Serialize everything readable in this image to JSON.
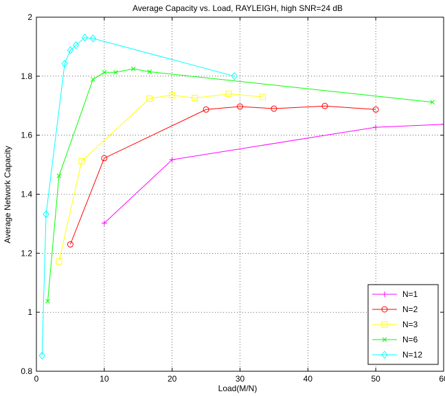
{
  "chart_data": {
    "type": "line",
    "title": "Average Capacity vs. Load, RAYLEIGH, high SNR=24 dB",
    "xlabel": "Load(M/N)",
    "ylabel": "Average Network Capacity",
    "xlim": [
      0,
      60
    ],
    "ylim": [
      0.8,
      2
    ],
    "xticks": [
      0,
      10,
      20,
      30,
      40,
      50,
      60
    ],
    "yticks": [
      0.8,
      1,
      1.2,
      1.4,
      1.6,
      1.8,
      2
    ],
    "xtick_labels": [
      "0",
      "10",
      "20",
      "30",
      "40",
      "50",
      "60"
    ],
    "ytick_labels": [
      "0.8",
      "1",
      "1.2",
      "1.4",
      "1.6",
      "1.8",
      "2"
    ],
    "grid": true,
    "legend_position": "bottom-right",
    "series": [
      {
        "name": "N=1",
        "color": "#ff00ff",
        "marker": "plus",
        "x": [
          10,
          20,
          50,
          60
        ],
        "y": [
          1.302,
          1.517,
          1.627,
          1.637
        ]
      },
      {
        "name": "N=2",
        "color": "#ff0000",
        "marker": "circle",
        "x": [
          5,
          10,
          25,
          30,
          35,
          42.5,
          50
        ],
        "y": [
          1.23,
          1.522,
          1.687,
          1.697,
          1.69,
          1.699,
          1.687
        ]
      },
      {
        "name": "N=3",
        "color": "#ffff00",
        "marker": "square",
        "x": [
          3.33,
          6.67,
          16.67,
          20,
          23.33,
          28.33,
          33.33
        ],
        "y": [
          1.172,
          1.512,
          1.724,
          1.736,
          1.726,
          1.74,
          1.73
        ]
      },
      {
        "name": "N=6",
        "color": "#00ff00",
        "marker": "x",
        "x": [
          1.67,
          3.33,
          8.33,
          10,
          11.67,
          14.29,
          16.67,
          58.33
        ],
        "y": [
          1.037,
          1.462,
          1.789,
          1.813,
          1.813,
          1.825,
          1.815,
          1.712
        ]
      },
      {
        "name": "N=12",
        "color": "#00ffff",
        "marker": "diamond",
        "x": [
          0.83,
          1.43,
          4.17,
          5,
          5.83,
          7.14,
          8.33,
          29.17
        ],
        "y": [
          0.853,
          1.332,
          1.842,
          1.888,
          1.905,
          1.931,
          1.928,
          1.8
        ]
      }
    ]
  }
}
